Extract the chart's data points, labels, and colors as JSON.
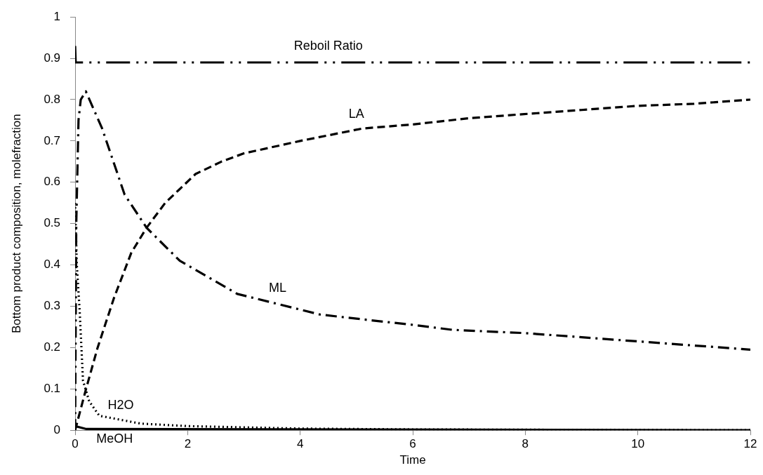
{
  "chart_data": {
    "type": "line",
    "xlabel": "Time",
    "ylabel": "Bottom product composition, molefraction",
    "xlim": [
      0,
      12
    ],
    "xticks": [
      0,
      2,
      4,
      6,
      8,
      10,
      12
    ],
    "ylim": [
      0,
      1
    ],
    "yticks": [
      0,
      0.1,
      0.2,
      0.3,
      0.4,
      0.5,
      0.6,
      0.7,
      0.8,
      0.9,
      1
    ],
    "grid": false,
    "legend": false,
    "marker": "none",
    "series": [
      {
        "color": "#000000",
        "line_style": "dashdotdot",
        "x": [
          0,
          0.01,
          12
        ],
        "values": [
          0.93,
          0.89,
          0.89
        ]
      },
      {
        "color": "#000000",
        "line_style": "dashdot",
        "x": [
          0,
          0.02,
          0.06,
          0.1,
          0.19,
          0.48,
          0.88,
          1.27,
          1.86,
          2.88,
          4.35,
          5,
          6,
          6.7,
          8,
          9,
          10,
          11,
          11.8,
          12
        ],
        "values": [
          0,
          0.5,
          0.75,
          0.8,
          0.82,
          0.73,
          0.57,
          0.49,
          0.41,
          0.33,
          0.28,
          0.27,
          0.255,
          0.243,
          0.235,
          0.225,
          0.215,
          0.205,
          0.197,
          0.195
        ]
      },
      {
        "color": "#000000",
        "line_style": "dashed",
        "x": [
          0,
          0.19,
          0.4,
          0.69,
          1,
          1.27,
          1.6,
          2.14,
          2.6,
          3,
          4,
          5.1,
          6,
          7,
          7.98,
          9,
          10,
          11,
          12
        ],
        "values": [
          0,
          0.098,
          0.2,
          0.32,
          0.43,
          0.49,
          0.55,
          0.62,
          0.65,
          0.67,
          0.7,
          0.73,
          0.74,
          0.755,
          0.765,
          0.775,
          0.785,
          0.79,
          0.8
        ]
      },
      {
        "color": "#000000",
        "line_style": "dotted",
        "x": [
          0,
          0.03,
          0.08,
          0.14,
          0.25,
          0.43,
          1.17,
          2,
          3,
          4,
          6,
          12
        ],
        "values": [
          0.55,
          0.4,
          0.29,
          0.12,
          0.07,
          0.035,
          0.016,
          0.01,
          0.007,
          0.004,
          0.002,
          0
        ]
      },
      {
        "color": "#000000",
        "line_style": "solid",
        "x": [
          0,
          0.2,
          12
        ],
        "values": [
          0.01,
          0.003,
          0
        ]
      }
    ],
    "annotations": [
      {
        "text": "Reboil Ratio",
        "x": 4.5,
        "y": 0.89
      },
      {
        "text": "LA",
        "x": 5,
        "y": 0.725
      },
      {
        "text": "ML",
        "x": 3.6,
        "y": 0.305
      },
      {
        "text": "H2O",
        "x": 0.81,
        "y": 0.02
      },
      {
        "text": "MeOH",
        "x": 0.7,
        "y": 0
      }
    ]
  }
}
